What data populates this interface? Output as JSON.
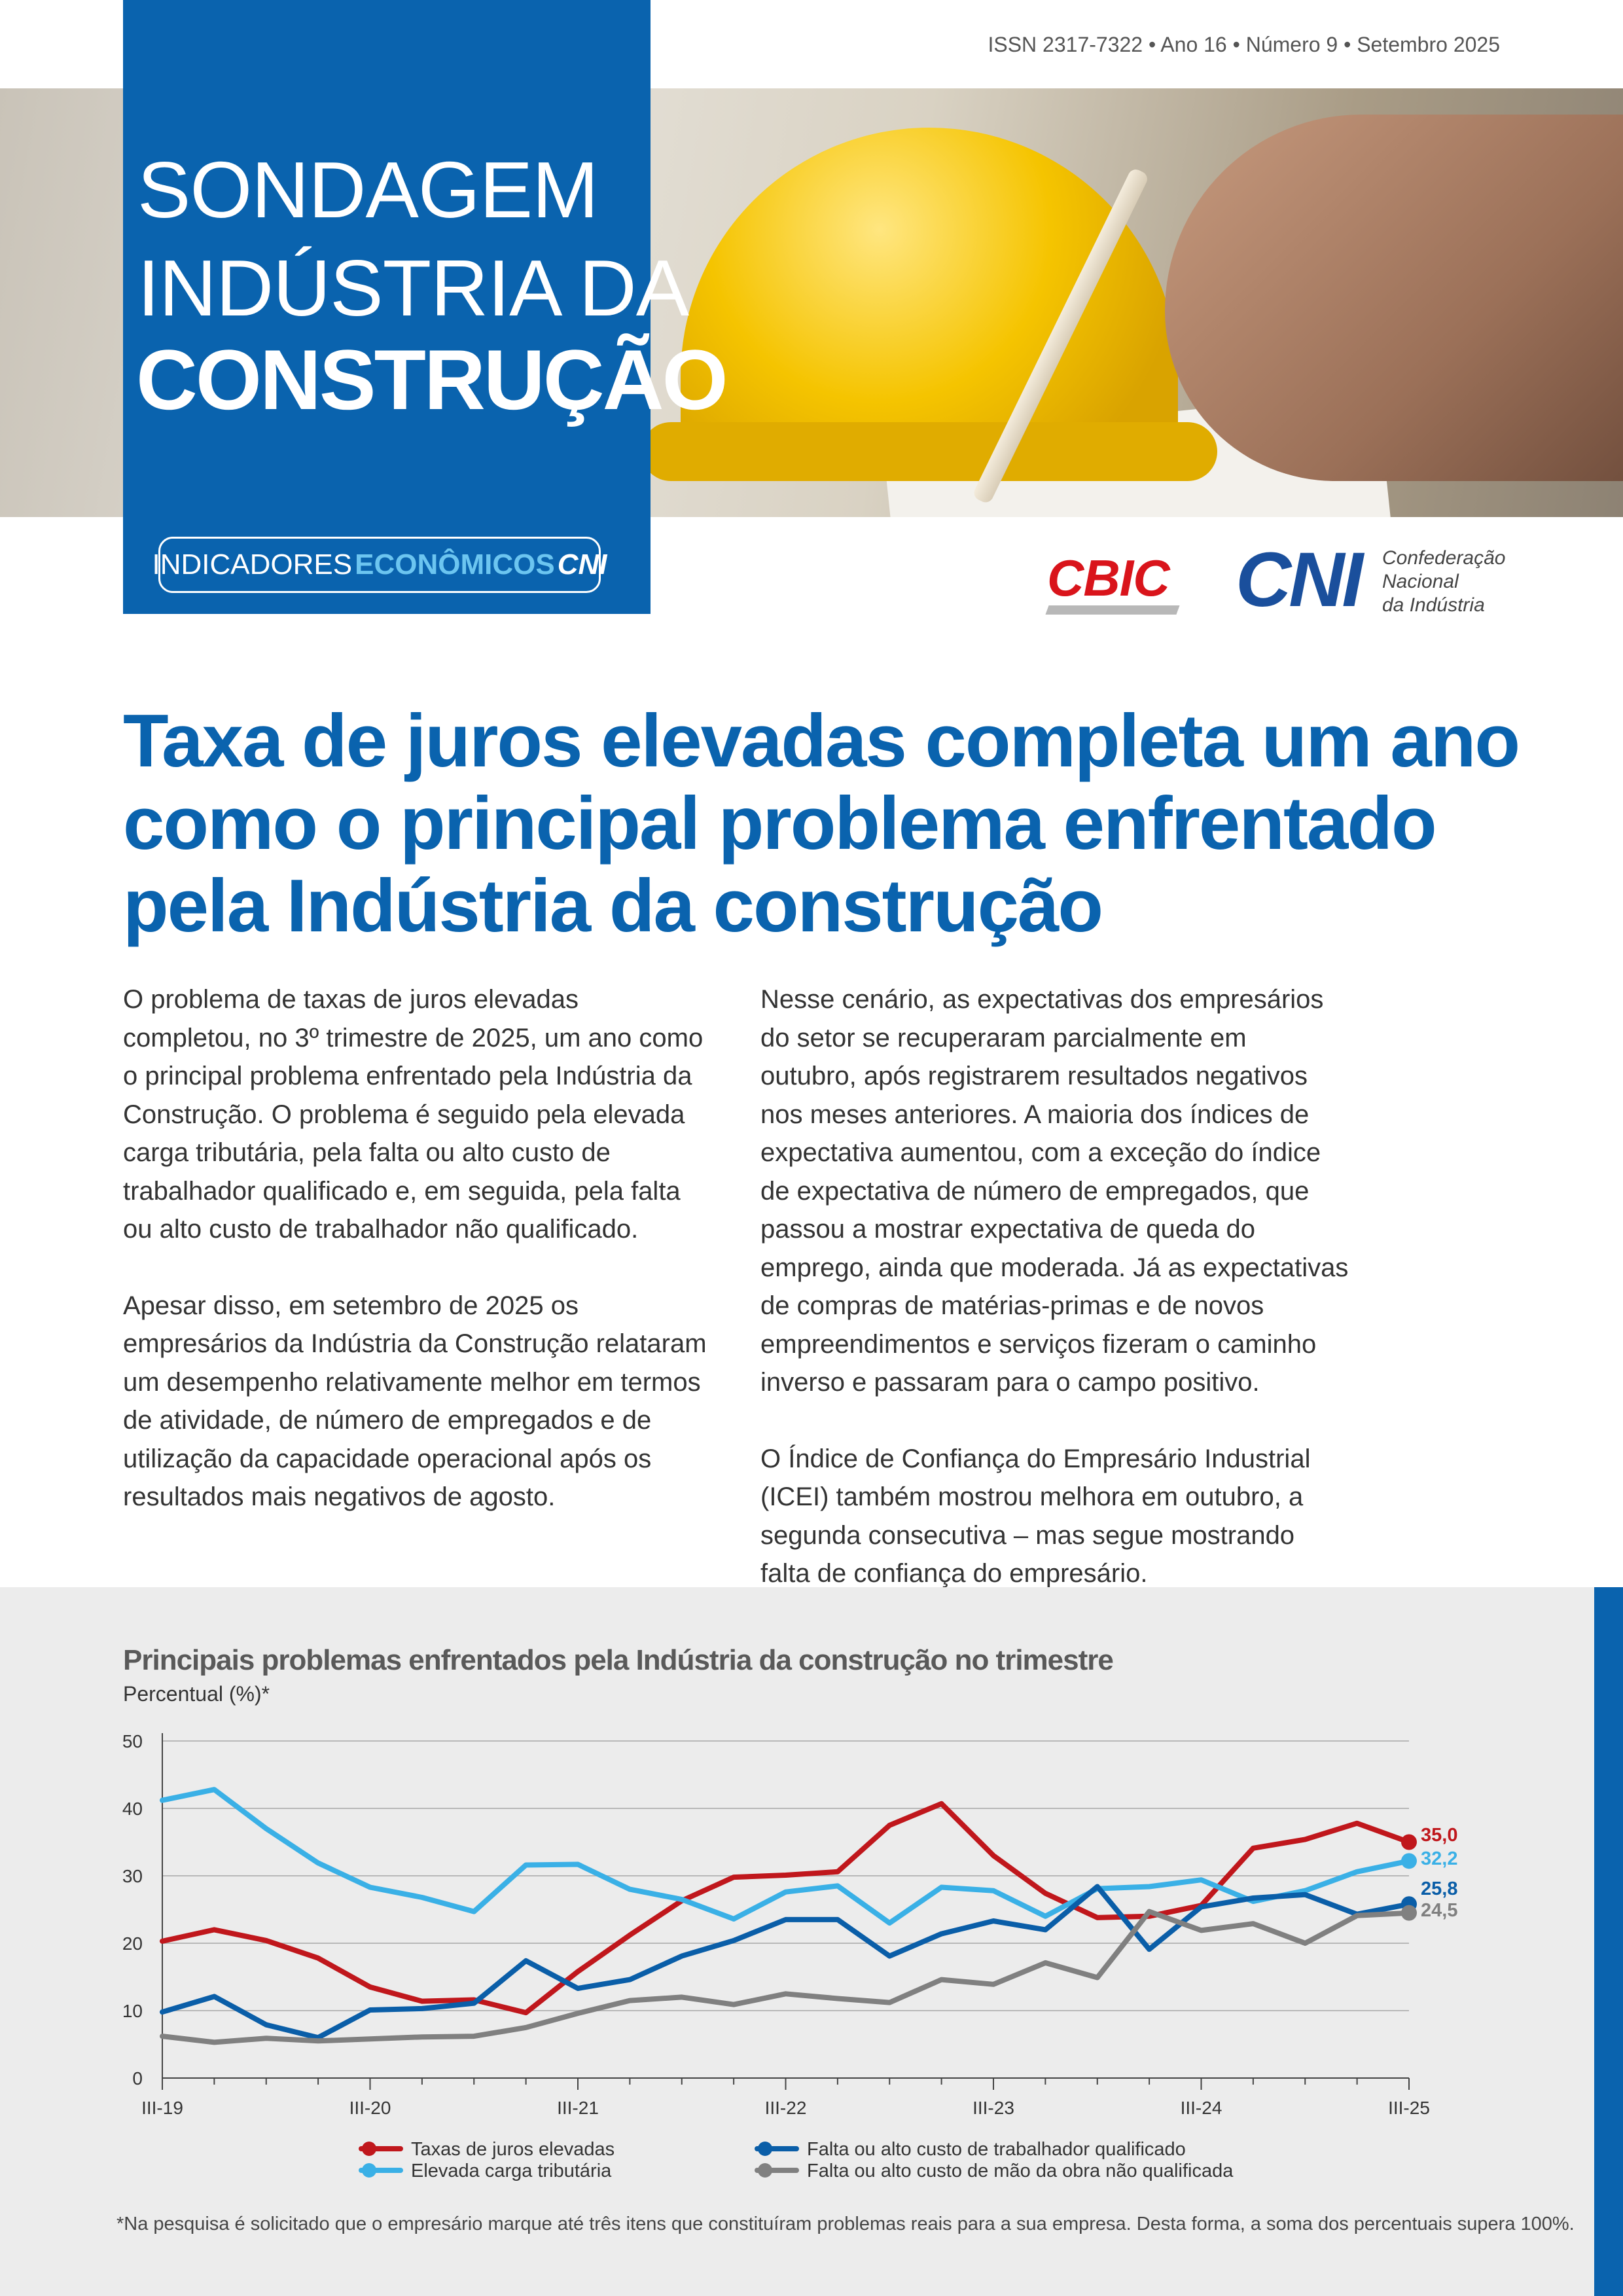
{
  "header": {
    "issn": "ISSN 2317-7322 • Ano 16 • Número 9 • Setembro 2025",
    "title_line1": "SONDAGEM",
    "title_line2": "INDÚSTRIA DA",
    "title_line3": "CONSTRUÇÃO",
    "badge_light": "INDICADORES",
    "badge_bold": "ECONÔMICOS",
    "badge_cni": "CNI"
  },
  "logos": {
    "cbic": "CBIC",
    "cni": "CNI",
    "cni_line1": "Confederação",
    "cni_line2": "Nacional",
    "cni_line3": "da Indústria"
  },
  "article": {
    "headline": "Taxa de juros elevadas completa um ano como o principal problema enfrentado pela Indústria da construção",
    "col1_p1": "O problema de taxas de juros elevadas completou, no 3º trimestre de 2025, um ano como o principal problema enfrentado pela Indústria da Construção. O problema é seguido pela elevada carga tributária, pela falta ou alto custo de trabalhador qualificado e, em seguida, pela falta ou alto custo de trabalhador não qualificado.",
    "col1_p2": "Apesar disso, em setembro de 2025 os empresários da Indústria da Construção relataram um desempenho relativamente melhor em termos de atividade, de número de empregados e de utilização da capacidade operacional após os resultados mais negativos de agosto.",
    "col2_p1": "Nesse cenário, as expectativas dos empresários do setor se recuperaram parcialmente em outubro, após registrarem resultados negativos nos meses anteriores. A maioria dos índices de expectativa aumentou, com a exceção do índice de expectativa de número de empregados, que passou a mostrar expectativa de queda do emprego, ainda que moderada. Já as expectativas de compras de matérias-primas e de novos empreendimentos e serviços fizeram o caminho inverso e passaram para o campo positivo.",
    "col2_p2": "O Índice de Confiança do Empresário Industrial (ICEI) também mostrou melhora em outubro, a segunda consecutiva – mas segue mostrando falta de confiança do empresário."
  },
  "chart_data": {
    "type": "line",
    "title": "Principais problemas enfrentados pela Indústria da construção no trimestre",
    "ylabel": "Percentual (%)*",
    "ylim": [
      0,
      50
    ],
    "yticks": [
      "0",
      "10",
      "20",
      "30",
      "40",
      "50"
    ],
    "xtick_labels": [
      "III-19",
      "III-20",
      "III-21",
      "III-22",
      "III-23",
      "III-24",
      "III-25"
    ],
    "x_count": 25,
    "grid": true,
    "legend_position": "bottom",
    "series": [
      {
        "name": "Taxas de juros elevadas",
        "color": "#c0171c",
        "end_label": "35,0",
        "values": [
          20.3,
          22.0,
          20.4,
          17.8,
          13.5,
          11.4,
          11.6,
          9.7,
          15.8,
          21.2,
          26.3,
          29.8,
          30.1,
          30.6,
          37.5,
          40.7,
          33.0,
          27.4,
          23.8,
          24.0,
          25.6,
          34.1,
          35.4,
          37.8,
          35.0
        ]
      },
      {
        "name": "Elevada carga tributária",
        "color": "#3ab0e6",
        "end_label": "32,2",
        "values": [
          41.2,
          42.8,
          37.0,
          31.9,
          28.3,
          26.8,
          24.7,
          31.6,
          31.7,
          28.0,
          26.5,
          23.6,
          27.6,
          28.5,
          23.0,
          28.3,
          27.8,
          24.0,
          28.1,
          28.4,
          29.4,
          26.2,
          27.8,
          30.6,
          32.2
        ]
      },
      {
        "name": "Falta ou alto custo de trabalhador qualificado",
        "color": "#0a5ea8",
        "end_label": "25,8",
        "values": [
          9.8,
          12.1,
          7.9,
          6.0,
          10.1,
          10.3,
          11.1,
          17.4,
          13.3,
          14.6,
          18.1,
          20.4,
          23.5,
          23.5,
          18.1,
          21.4,
          23.3,
          22.0,
          28.4,
          19.1,
          25.4,
          26.7,
          27.2,
          24.3,
          25.8
        ]
      },
      {
        "name": "Falta ou alto custo de mão da obra não qualificada",
        "color": "#808080",
        "end_label": "24,5",
        "values": [
          6.2,
          5.3,
          5.9,
          5.5,
          5.8,
          6.1,
          6.2,
          7.5,
          9.6,
          11.5,
          12.0,
          10.9,
          12.5,
          11.8,
          11.2,
          14.6,
          13.9,
          17.1,
          14.9,
          24.7,
          21.9,
          22.9,
          20.0,
          24.1,
          24.5
        ]
      }
    ]
  },
  "footnote": "*Na pesquisa é solicitado que o empresário marque até três itens que constituíram problemas reais para a sua empresa. Desta forma, a soma dos percentuais supera 100%."
}
